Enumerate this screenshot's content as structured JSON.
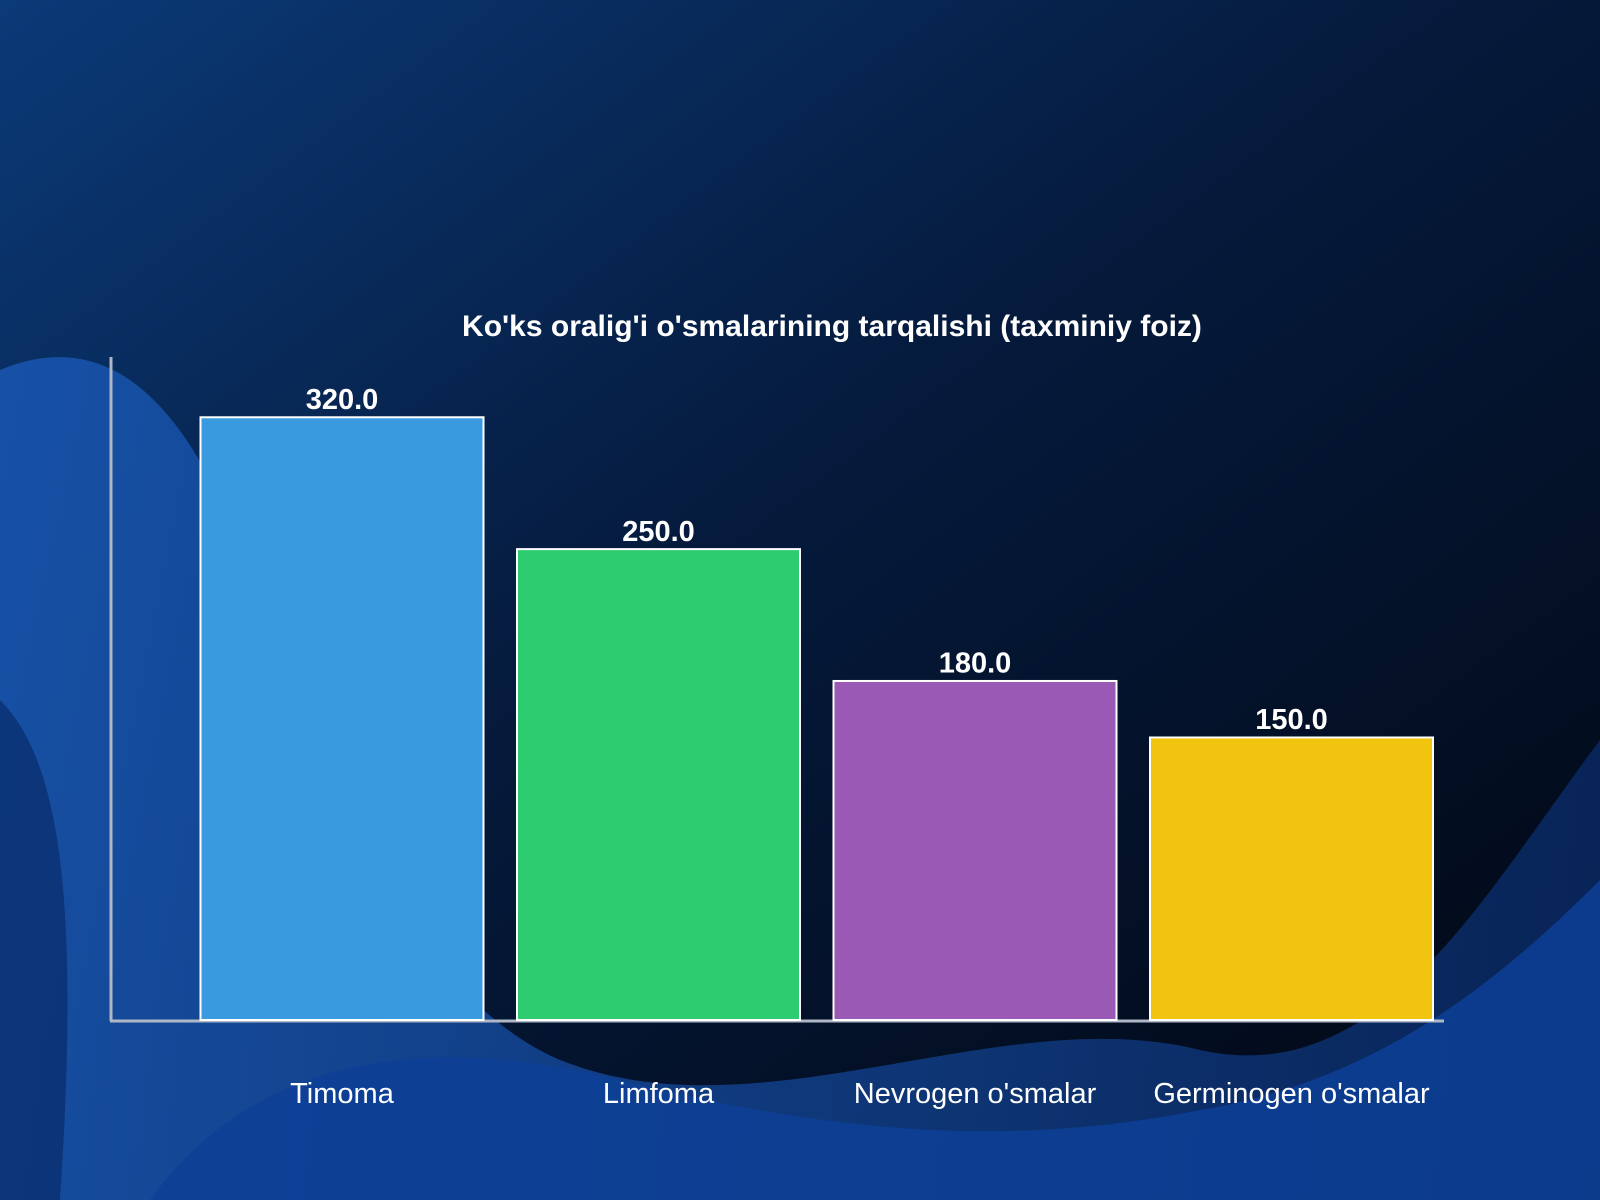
{
  "chart_data": {
    "type": "bar",
    "title": "Ko'ks oralig'i o'smalarining tarqalishi (taxminiy foiz)",
    "categories": [
      "Timoma",
      "Limfoma",
      "Nevrogen o'smalar",
      "Germinogen o'smalar"
    ],
    "values": [
      320,
      250,
      180,
      150
    ],
    "value_labels": [
      "320.0",
      "250.0",
      "180.0",
      "150.0"
    ],
    "colors": [
      "#3a9ae0",
      "#2ecc71",
      "#9b59b6",
      "#f1c40f"
    ],
    "ylim": [
      0,
      352
    ],
    "grid": false
  }
}
